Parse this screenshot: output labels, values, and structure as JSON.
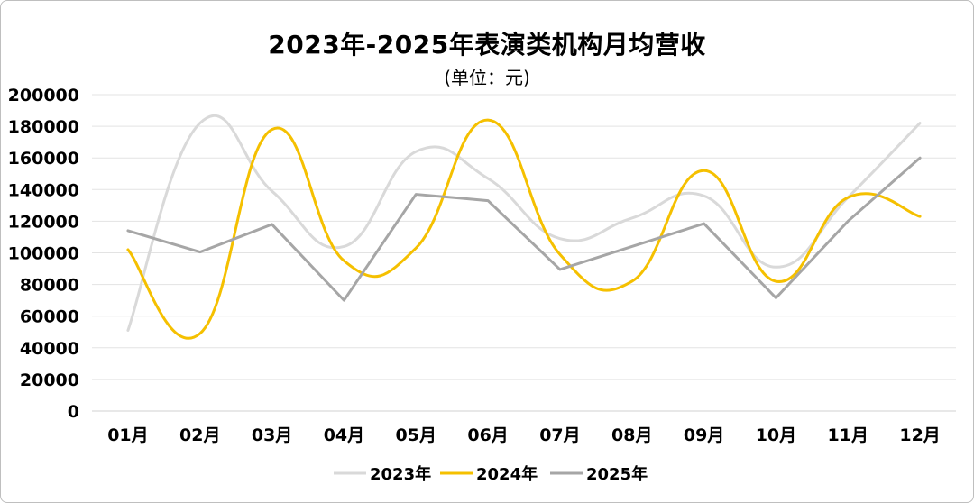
{
  "chart_data": {
    "type": "line",
    "title": "2023年-2025年表演类机构月均营收",
    "subtitle": "(单位：元)",
    "categories": [
      "01月",
      "02月",
      "03月",
      "04月",
      "05月",
      "06月",
      "07月",
      "08月",
      "09月",
      "10月",
      "11月",
      "12月"
    ],
    "yticks": [
      "0",
      "20000",
      "40000",
      "60000",
      "80000",
      "100000",
      "120000",
      "140000",
      "160000",
      "180000",
      "200000"
    ],
    "ylim": [
      0,
      200000
    ],
    "grid": true,
    "legend_position": "bottom",
    "series": [
      {
        "name": "2023年",
        "color": "#d9d9d9",
        "smooth": true,
        "values": [
          51000,
          182000,
          139000,
          104000,
          164000,
          147000,
          109000,
          122000,
          136000,
          91000,
          135000,
          182000
        ]
      },
      {
        "name": "2024年",
        "color": "#f5c000",
        "smooth": true,
        "values": [
          102000,
          49000,
          178000,
          95000,
          103000,
          184000,
          99000,
          82000,
          152000,
          82000,
          135000,
          123000
        ]
      },
      {
        "name": "2025年",
        "color": "#a6a6a6",
        "smooth": false,
        "values": [
          114000,
          100500,
          118000,
          70000,
          137000,
          133000,
          89500,
          104000,
          118500,
          71500,
          120000,
          160000
        ]
      }
    ]
  }
}
